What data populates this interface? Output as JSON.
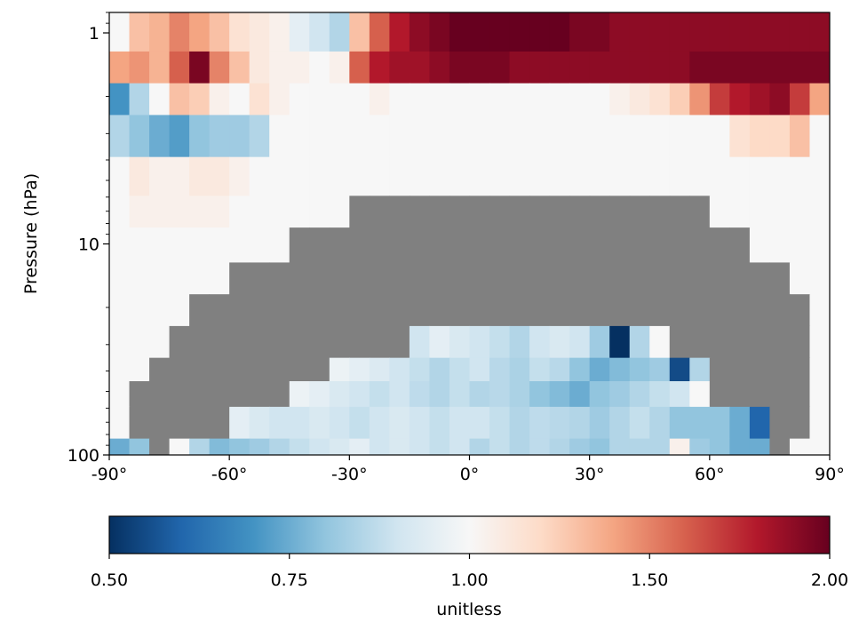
{
  "chart_data": {
    "type": "heatmap",
    "title": "",
    "xlabel": "",
    "ylabel": "Pressure (hPa)",
    "x_range": [
      -90,
      90
    ],
    "y_range_hpa": [
      100,
      0.8
    ],
    "y_scale": "log",
    "y_axis_inverted": true,
    "x_ticks": [
      {
        "value": -90,
        "label": "-90°"
      },
      {
        "value": -60,
        "label": "-60°"
      },
      {
        "value": -30,
        "label": "-30°"
      },
      {
        "value": 0,
        "label": "0°"
      },
      {
        "value": 30,
        "label": "30°"
      },
      {
        "value": 60,
        "label": "60°"
      },
      {
        "value": 90,
        "label": "90°"
      }
    ],
    "y_ticks": [
      {
        "value": 1,
        "label": "1"
      },
      {
        "value": 10,
        "label": "10"
      },
      {
        "value": 100,
        "label": "100"
      }
    ],
    "missing_color": "#808080",
    "colormap": "RdBu_r",
    "colorbar": {
      "label": "unitless",
      "range": [
        0.5,
        2.0
      ],
      "ticks": [
        {
          "value": 0.5,
          "label": "0.50"
        },
        {
          "value": 0.75,
          "label": "0.75"
        },
        {
          "value": 1.0,
          "label": "1.00"
        },
        {
          "value": 1.5,
          "label": "1.50"
        },
        {
          "value": 2.0,
          "label": "2.00"
        }
      ],
      "stops": [
        "#053061",
        "#2166ac",
        "#4393c3",
        "#92c5de",
        "#d1e5f0",
        "#f7f7f7",
        "#fddbc7",
        "#f4a582",
        "#d6604d",
        "#b2182b",
        "#67001f"
      ]
    },
    "grid": {
      "lat_edges": [
        -90,
        -85,
        -80,
        -75,
        -70,
        -65,
        -60,
        -55,
        -50,
        -45,
        -40,
        -35,
        -30,
        -25,
        -20,
        -15,
        -10,
        -5,
        0,
        5,
        10,
        15,
        20,
        25,
        30,
        35,
        40,
        45,
        50,
        55,
        60,
        65,
        70,
        75,
        80,
        85,
        90
      ],
      "levels_hpa": [
        1.0,
        1.5,
        2.0,
        3.0,
        5.0,
        7.0,
        10,
        15,
        20,
        30,
        40,
        50,
        70,
        100
      ],
      "level_rows": [
        [
          1.0,
          1.3,
          1.35,
          1.5,
          1.4,
          1.3,
          1.15,
          1.1,
          1.05,
          0.95,
          0.9,
          0.85,
          1.3,
          1.6,
          1.8,
          1.9,
          1.95,
          2.0,
          2.0,
          2.0,
          2.0,
          2.0,
          2.0,
          1.95,
          1.95,
          1.9,
          1.9,
          1.9,
          1.9,
          1.9,
          1.9,
          1.9,
          1.9,
          1.9,
          1.9,
          1.9
        ],
        [
          1.4,
          1.45,
          1.35,
          1.6,
          1.95,
          1.5,
          1.3,
          1.1,
          1.05,
          1.05,
          1.0,
          1.05,
          1.6,
          1.8,
          1.85,
          1.85,
          1.9,
          1.95,
          1.95,
          1.95,
          1.9,
          1.9,
          1.9,
          1.9,
          1.9,
          1.9,
          1.9,
          1.9,
          1.9,
          1.95,
          1.95,
          1.95,
          1.95,
          1.95,
          1.95,
          1.95
        ],
        [
          0.7,
          0.85,
          1.0,
          1.3,
          1.25,
          1.05,
          1.0,
          1.15,
          1.05,
          1.0,
          1.0,
          1.0,
          1.0,
          1.05,
          1.0,
          1.0,
          1.0,
          1.0,
          1.0,
          1.0,
          1.0,
          1.0,
          1.0,
          1.0,
          1.0,
          1.05,
          1.1,
          1.15,
          1.25,
          1.45,
          1.7,
          1.8,
          1.85,
          1.9,
          1.7,
          1.4
        ],
        [
          0.85,
          0.8,
          0.75,
          0.72,
          0.8,
          0.82,
          0.82,
          0.85,
          1.0,
          1.0,
          1.0,
          1.0,
          1.0,
          1.0,
          1.0,
          1.0,
          1.0,
          1.0,
          1.0,
          1.0,
          1.0,
          1.0,
          1.0,
          1.0,
          1.0,
          1.0,
          1.0,
          1.0,
          1.0,
          1.0,
          1.0,
          1.15,
          1.2,
          1.2,
          1.3,
          1.0
        ],
        [
          1.0,
          1.1,
          1.05,
          1.05,
          1.1,
          1.1,
          1.05,
          1.0,
          1.0,
          1.0,
          1.0,
          1.0,
          1.0,
          1.0,
          1.0,
          1.0,
          1.0,
          1.0,
          1.0,
          1.0,
          1.0,
          1.0,
          1.0,
          1.0,
          1.0,
          1.0,
          1.0,
          1.0,
          1.0,
          1.0,
          1.0,
          1.0,
          1.0,
          1.0,
          1.0,
          1.0
        ],
        [
          1.0,
          1.05,
          1.05,
          1.05,
          1.05,
          1.05,
          1.0,
          1.0,
          1.0,
          1.0,
          1.0,
          1.0,
          "NaN",
          "NaN",
          "NaN",
          "NaN",
          "NaN",
          "NaN",
          "NaN",
          "NaN",
          "NaN",
          "NaN",
          "NaN",
          "NaN",
          "NaN",
          "NaN",
          "NaN",
          "NaN",
          "NaN",
          "NaN",
          1.0,
          1.0,
          1.0,
          1.0,
          1.0,
          1.0
        ],
        [
          1.0,
          1.0,
          1.0,
          1.0,
          1.0,
          1.0,
          1.0,
          1.0,
          1.0,
          "NaN",
          "NaN",
          "NaN",
          "NaN",
          "NaN",
          "NaN",
          "NaN",
          "NaN",
          "NaN",
          "NaN",
          "NaN",
          "NaN",
          "NaN",
          "NaN",
          "NaN",
          "NaN",
          "NaN",
          "NaN",
          "NaN",
          "NaN",
          "NaN",
          "NaN",
          "NaN",
          1.0,
          1.0,
          1.0,
          1.0
        ],
        [
          1.0,
          1.0,
          1.0,
          1.0,
          1.0,
          1.0,
          "NaN",
          "NaN",
          "NaN",
          "NaN",
          "NaN",
          "NaN",
          "NaN",
          "NaN",
          "NaN",
          "NaN",
          "NaN",
          "NaN",
          "NaN",
          "NaN",
          "NaN",
          "NaN",
          "NaN",
          "NaN",
          "NaN",
          "NaN",
          "NaN",
          "NaN",
          "NaN",
          "NaN",
          "NaN",
          "NaN",
          "NaN",
          "NaN",
          1.0,
          1.0
        ],
        [
          1.0,
          1.0,
          1.0,
          1.0,
          "NaN",
          "NaN",
          "NaN",
          "NaN",
          "NaN",
          "NaN",
          "NaN",
          "NaN",
          "NaN",
          "NaN",
          "NaN",
          "NaN",
          "NaN",
          "NaN",
          "NaN",
          "NaN",
          "NaN",
          "NaN",
          "NaN",
          "NaN",
          "NaN",
          "NaN",
          "NaN",
          "NaN",
          "NaN",
          "NaN",
          "NaN",
          "NaN",
          "NaN",
          "NaN",
          "NaN",
          1.0
        ],
        [
          1.0,
          1.0,
          1.0,
          "NaN",
          "NaN",
          "NaN",
          "NaN",
          "NaN",
          "NaN",
          "NaN",
          "NaN",
          "NaN",
          "NaN",
          "NaN",
          "NaN",
          0.9,
          0.95,
          0.92,
          0.9,
          0.88,
          0.85,
          0.9,
          0.92,
          0.9,
          0.82,
          0.5,
          0.85,
          1.0,
          "NaN",
          "NaN",
          "NaN",
          "NaN",
          "NaN",
          "NaN",
          "NaN",
          1.0
        ],
        [
          1.0,
          1.0,
          "NaN",
          "NaN",
          "NaN",
          "NaN",
          "NaN",
          "NaN",
          "NaN",
          "NaN",
          "NaN",
          0.97,
          0.95,
          0.93,
          0.9,
          0.88,
          0.85,
          0.88,
          0.9,
          0.86,
          0.84,
          0.88,
          0.86,
          0.8,
          0.75,
          0.78,
          0.8,
          0.82,
          0.55,
          0.85,
          "NaN",
          "NaN",
          "NaN",
          "NaN",
          "NaN",
          1.0
        ],
        [
          1.0,
          "NaN",
          "NaN",
          "NaN",
          "NaN",
          "NaN",
          "NaN",
          "NaN",
          "NaN",
          0.97,
          0.95,
          0.92,
          0.9,
          0.88,
          0.9,
          0.87,
          0.85,
          0.88,
          0.85,
          0.86,
          0.84,
          0.8,
          0.78,
          0.75,
          0.8,
          0.82,
          0.85,
          0.88,
          0.9,
          1.0,
          "NaN",
          "NaN",
          "NaN",
          "NaN",
          "NaN",
          1.0
        ],
        [
          1.0,
          "NaN",
          "NaN",
          "NaN",
          "NaN",
          "NaN",
          0.95,
          0.92,
          0.9,
          0.9,
          0.92,
          0.9,
          0.88,
          0.9,
          0.92,
          0.9,
          0.88,
          0.9,
          0.9,
          0.88,
          0.85,
          0.87,
          0.86,
          0.85,
          0.82,
          0.85,
          0.88,
          0.85,
          0.8,
          0.8,
          0.8,
          0.75,
          0.6,
          "NaN",
          "NaN",
          1.0
        ],
        [
          0.75,
          0.8,
          "NaN",
          1.0,
          0.85,
          0.78,
          0.8,
          0.82,
          0.85,
          0.88,
          0.9,
          0.92,
          0.95,
          0.9,
          0.92,
          0.9,
          0.88,
          0.9,
          0.85,
          0.88,
          0.85,
          0.87,
          0.85,
          0.82,
          0.8,
          0.85,
          0.85,
          0.85,
          1.05,
          0.82,
          0.8,
          0.75,
          0.75,
          "NaN",
          1.0,
          1.0
        ]
      ]
    }
  }
}
